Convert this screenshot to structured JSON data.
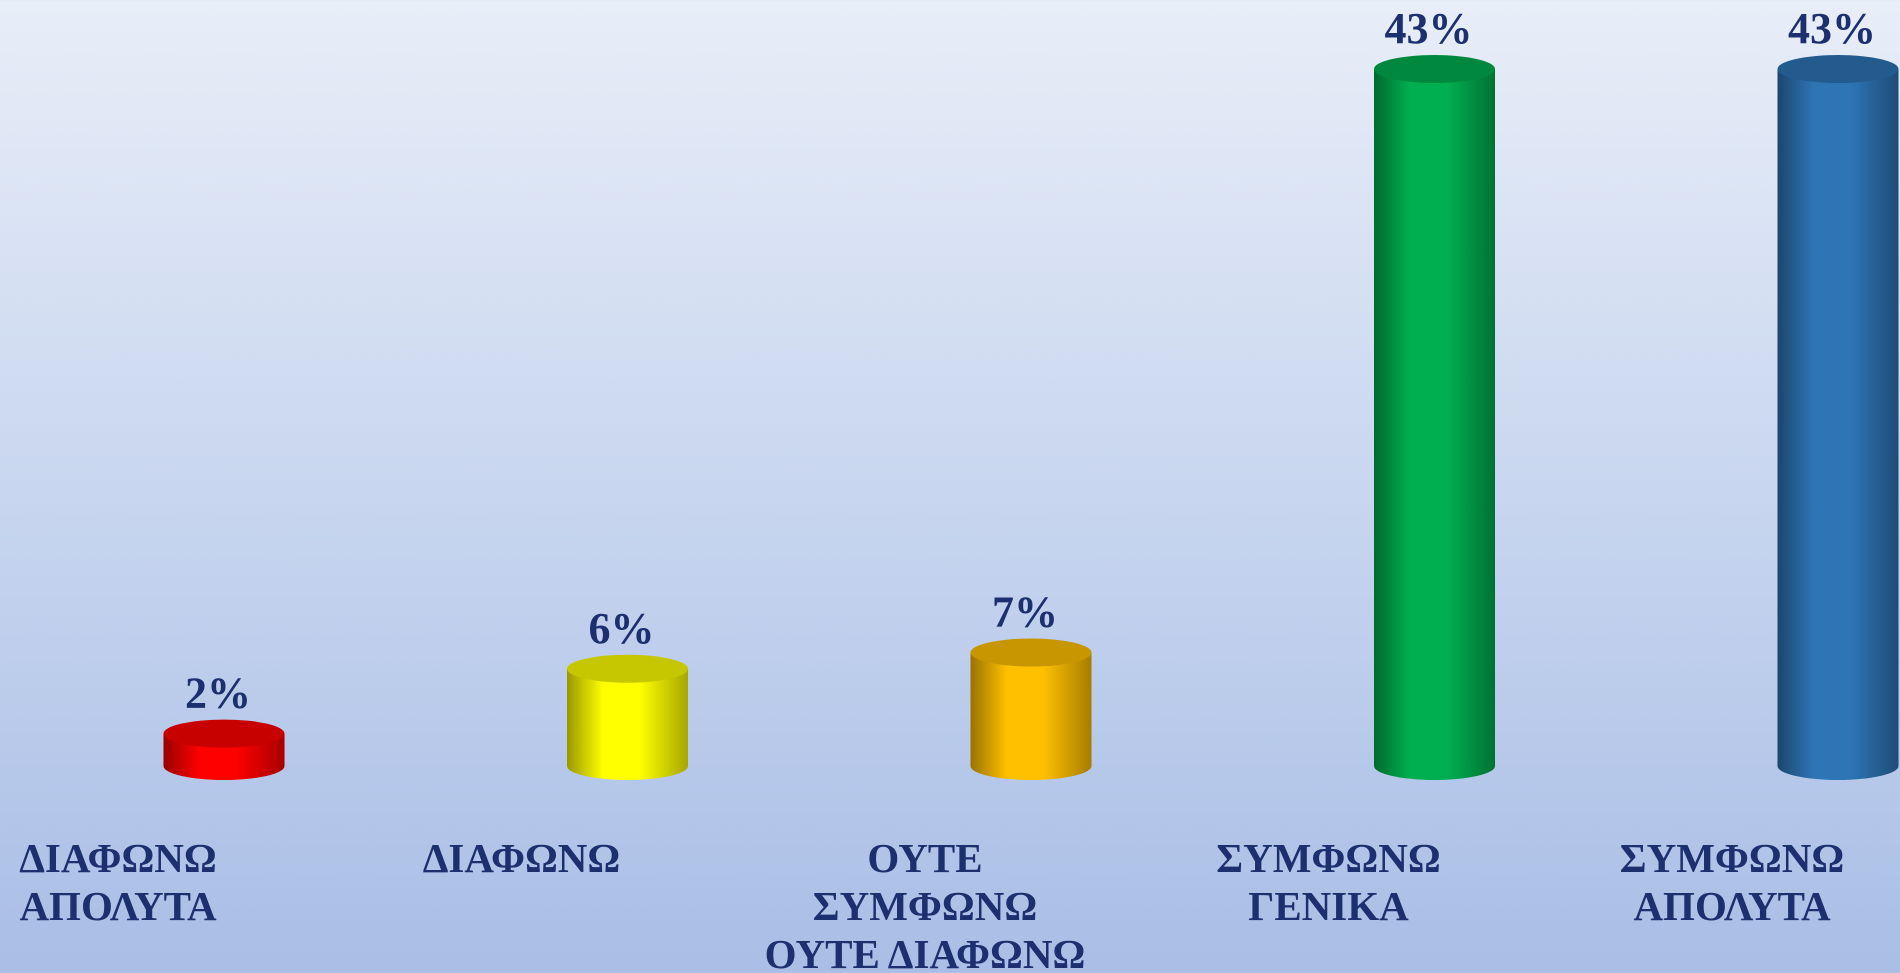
{
  "chart_data": {
    "type": "bar",
    "categories": [
      "ΔΙΑΦΩΝΩ\nΑΠΟΛΥΤΑ",
      "ΔΙΑΦΩΝΩ",
      "ΟΥΤΕ\nΣΥΜΦΩΝΩ\nΟΥΤΕ ΔΙΑΦΩΝΩ",
      "ΣΥΜΦΩΝΩ\nΓΕΝΙΚΑ",
      "ΣΥΜΦΩΝΩ\nΑΠΟΛΥΤΑ"
    ],
    "values": [
      2,
      6,
      7,
      43,
      43
    ],
    "value_labels": [
      "2%",
      "6%",
      "7%",
      "43%",
      "43%"
    ],
    "colors": [
      "#ff0000",
      "#ffff00",
      "#ffc000",
      "#00b050",
      "#2e75b6"
    ]
  }
}
